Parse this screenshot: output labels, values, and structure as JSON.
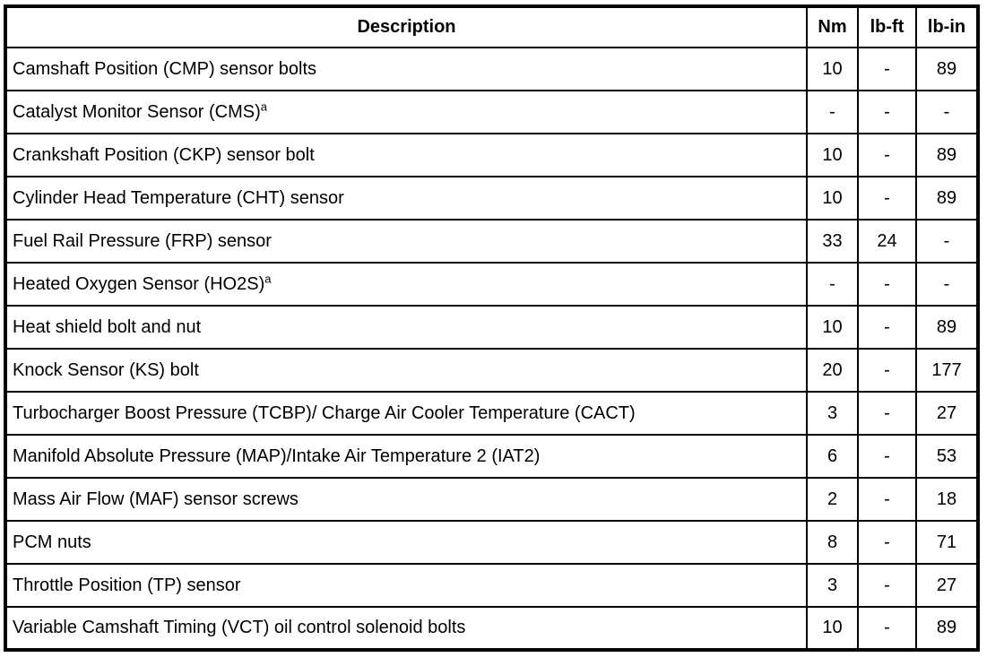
{
  "table": {
    "columns": [
      "Description",
      "Nm",
      "lb-ft",
      "lb-in"
    ],
    "rows": [
      {
        "description": "Camshaft Position (CMP) sensor bolts",
        "footnote": "",
        "nm": "10",
        "lb_ft": "-",
        "lb_in": "89"
      },
      {
        "description": "Catalyst Monitor Sensor (CMS)",
        "footnote": "a",
        "nm": "-",
        "lb_ft": "-",
        "lb_in": "-"
      },
      {
        "description": "Crankshaft Position (CKP) sensor bolt",
        "footnote": "",
        "nm": "10",
        "lb_ft": "-",
        "lb_in": "89"
      },
      {
        "description": "Cylinder Head Temperature (CHT) sensor",
        "footnote": "",
        "nm": "10",
        "lb_ft": "-",
        "lb_in": "89"
      },
      {
        "description": "Fuel Rail Pressure (FRP) sensor",
        "footnote": "",
        "nm": "33",
        "lb_ft": "24",
        "lb_in": "-"
      },
      {
        "description": "Heated Oxygen Sensor (HO2S)",
        "footnote": "a",
        "nm": "-",
        "lb_ft": "-",
        "lb_in": "-"
      },
      {
        "description": "Heat shield bolt and nut",
        "footnote": "",
        "nm": "10",
        "lb_ft": "-",
        "lb_in": "89"
      },
      {
        "description": "Knock Sensor (KS) bolt",
        "footnote": "",
        "nm": "20",
        "lb_ft": "-",
        "lb_in": "177"
      },
      {
        "description": "Turbocharger Boost Pressure (TCBP)/ Charge Air Cooler Temperature (CACT)",
        "footnote": "",
        "nm": "3",
        "lb_ft": "-",
        "lb_in": "27"
      },
      {
        "description": "Manifold Absolute Pressure (MAP)/Intake Air Temperature 2 (IAT2)",
        "footnote": "",
        "nm": "6",
        "lb_ft": "-",
        "lb_in": "53"
      },
      {
        "description": "Mass Air Flow (MAF) sensor screws",
        "footnote": "",
        "nm": "2",
        "lb_ft": "-",
        "lb_in": "18"
      },
      {
        "description": "PCM nuts",
        "footnote": "",
        "nm": "8",
        "lb_ft": "-",
        "lb_in": "71"
      },
      {
        "description": "Throttle Position (TP) sensor",
        "footnote": "",
        "nm": "3",
        "lb_ft": "-",
        "lb_in": "27"
      },
      {
        "description": "Variable Camshaft Timing (VCT) oil control solenoid bolts",
        "footnote": "",
        "nm": "10",
        "lb_ft": "-",
        "lb_in": "89"
      }
    ]
  }
}
